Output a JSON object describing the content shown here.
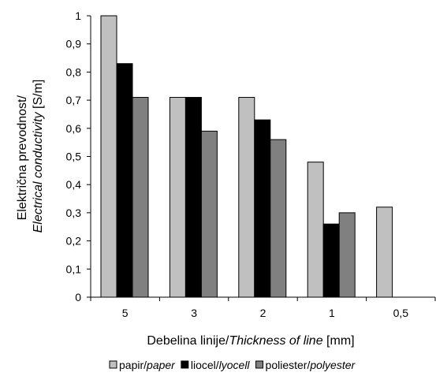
{
  "chart_data": {
    "type": "bar",
    "categories": [
      "5",
      "3",
      "2",
      "1",
      "0,5"
    ],
    "series": [
      {
        "name": "papir/",
        "name_italic": "paper",
        "color": "#c0c0c0",
        "values": [
          1.0,
          0.71,
          0.71,
          0.48,
          0.32
        ]
      },
      {
        "name": "liocel/",
        "name_italic": "lyocell",
        "color": "#000000",
        "values": [
          0.83,
          0.71,
          0.63,
          0.26,
          null
        ]
      },
      {
        "name": "poliester/",
        "name_italic": "polyester",
        "color": "#808080",
        "values": [
          0.71,
          0.59,
          0.56,
          0.3,
          null
        ]
      }
    ],
    "ylim": [
      0,
      1
    ],
    "yticks": [
      "0",
      "0,1",
      "0,2",
      "0,3",
      "0,4",
      "0,5",
      "0,6",
      "0,7",
      "0,8",
      "0,9",
      "1"
    ],
    "ylabel_line1": "Električna prevodnost/",
    "ylabel_line2_italic": "Electrical conductivity",
    "ylabel_line2_unit": " [S/m]",
    "xlabel_plain": "Debelina linije/",
    "xlabel_italic": "Thickness of line",
    "xlabel_unit": " [mm]",
    "grid": false,
    "legend_position": "bottom"
  }
}
